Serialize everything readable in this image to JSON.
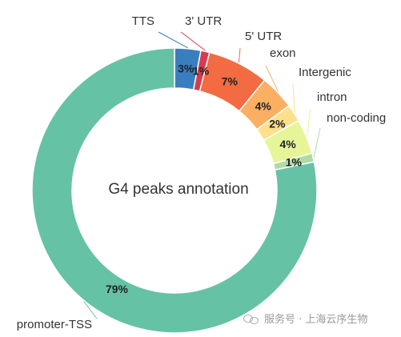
{
  "chart_data": {
    "type": "pie",
    "style": "donut",
    "center_title": "G4 peaks annotation",
    "start_angle": "top",
    "direction": "clockwise",
    "slices": [
      {
        "label": "TTS",
        "value": 3,
        "value_label": "3%",
        "color": "#3a7ebf"
      },
      {
        "label": "3' UTR",
        "value": 1,
        "value_label": "1%",
        "color": "#d43d51"
      },
      {
        "label": "5' UTR",
        "value": 7,
        "value_label": "7%",
        "color": "#f26b42"
      },
      {
        "label": "exon",
        "value": 4,
        "value_label": "4%",
        "color": "#fbaf63"
      },
      {
        "label": "Intergenic",
        "value": 2,
        "value_label": "2%",
        "color": "#fde08b"
      },
      {
        "label": "intron",
        "value": 4,
        "value_label": "4%",
        "color": "#e6f598"
      },
      {
        "label": "non-coding",
        "value": 1,
        "value_label": "1%",
        "color": "#aedca4"
      },
      {
        "label": "promoter-TSS",
        "value": 79,
        "value_label": "79%",
        "color": "#66c2a5"
      }
    ]
  },
  "watermark": {
    "text": "服务号 · 上海云序生物",
    "icon": "wechat-icon"
  }
}
